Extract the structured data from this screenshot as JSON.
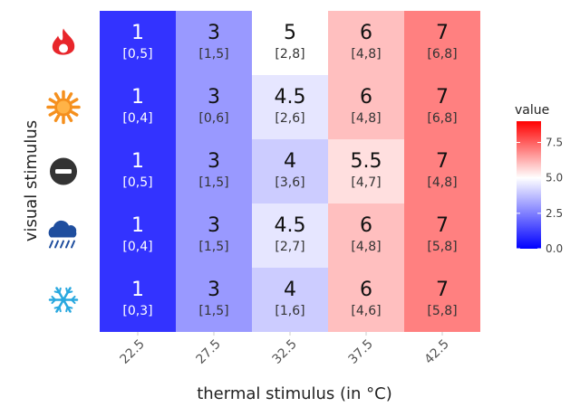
{
  "chart_data": {
    "type": "heatmap",
    "xlabel": "thermal stimulus (in °C)",
    "ylabel": "visual stimulus",
    "x_categories": [
      "22.5",
      "27.5",
      "32.5",
      "37.5",
      "42.5"
    ],
    "y_categories": [
      {
        "icon": "fire-icon",
        "color": "#e8262b"
      },
      {
        "icon": "sun-icon",
        "color": "#f5901e"
      },
      {
        "icon": "no-entry-icon",
        "color": "#333333"
      },
      {
        "icon": "rain-cloud-icon",
        "color": "#1f4e9e"
      },
      {
        "icon": "snowflake-icon",
        "color": "#29a8df"
      }
    ],
    "rows": [
      {
        "values": [
          1,
          3,
          5,
          6,
          7
        ],
        "ranges": [
          "[0,5]",
          "[1,5]",
          "[2,8]",
          "[4,8]",
          "[6,8]"
        ]
      },
      {
        "values": [
          1,
          3,
          4.5,
          6,
          7
        ],
        "ranges": [
          "[0,4]",
          "[0,6]",
          "[2,6]",
          "[4,8]",
          "[6,8]"
        ]
      },
      {
        "values": [
          1,
          3,
          4,
          5.5,
          7
        ],
        "ranges": [
          "[0,5]",
          "[1,5]",
          "[3,6]",
          "[4,7]",
          "[4,8]"
        ]
      },
      {
        "values": [
          1,
          3,
          4.5,
          6,
          7
        ],
        "ranges": [
          "[0,4]",
          "[1,5]",
          "[2,7]",
          "[4,8]",
          "[5,8]"
        ]
      },
      {
        "values": [
          1,
          3,
          4,
          6,
          7
        ],
        "ranges": [
          "[0,3]",
          "[1,5]",
          "[1,6]",
          "[4,6]",
          "[5,8]"
        ]
      }
    ],
    "value_labels": [
      [
        "1",
        "3",
        "5",
        "6",
        "7"
      ],
      [
        "1",
        "3",
        "4.5",
        "6",
        "7"
      ],
      [
        "1",
        "3",
        "4",
        "5.5",
        "7"
      ],
      [
        "1",
        "3",
        "4.5",
        "6",
        "7"
      ],
      [
        "1",
        "3",
        "4",
        "6",
        "7"
      ]
    ],
    "legend": {
      "title": "value",
      "placement": "right",
      "range": [
        0,
        9
      ],
      "midpoint": 5,
      "ticks": [
        0,
        2.5,
        5,
        7.5
      ],
      "tick_labels": [
        "0.0",
        "2.5",
        "5.0",
        "7.5"
      ],
      "low_color": "#0000ff",
      "mid_color": "#ffffff",
      "high_color": "#ff0000"
    }
  }
}
